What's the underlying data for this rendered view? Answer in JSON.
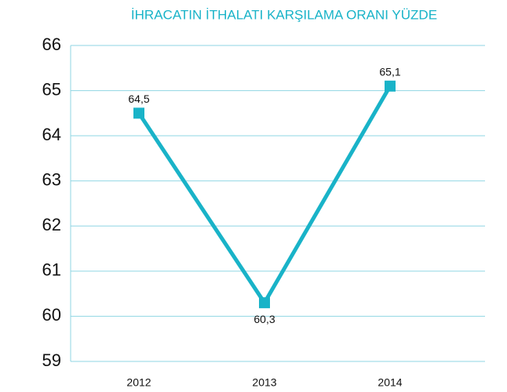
{
  "chart_data": {
    "type": "line",
    "title": "İHRACATIN İTHALATI KARŞILAMA ORANI YÜZDE",
    "categories": [
      "2012",
      "2013",
      "2014"
    ],
    "values": [
      64.5,
      60.3,
      65.1
    ],
    "value_labels": [
      "64,5",
      "60,3",
      "65,1"
    ],
    "color": "#19b3c8",
    "ylim": [
      59,
      66
    ],
    "yticks": [
      59,
      60,
      61,
      62,
      63,
      64,
      65,
      66
    ],
    "grid": true
  }
}
